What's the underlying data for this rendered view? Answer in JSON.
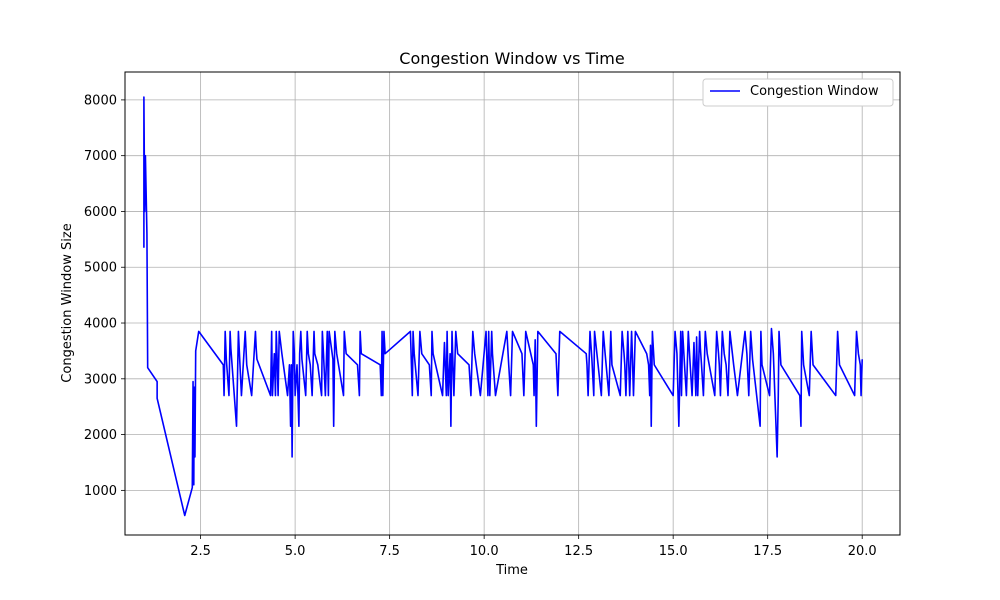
{
  "chart_data": {
    "type": "line",
    "title": "Congestion Window vs Time",
    "xlabel": "Time",
    "ylabel": "Congestion Window Size",
    "xlim": [
      0.5,
      21.0
    ],
    "ylim": [
      200,
      8500
    ],
    "xticks": [
      2.5,
      5.0,
      7.5,
      10.0,
      12.5,
      15.0,
      17.5,
      20.0
    ],
    "xtick_labels": [
      "2.5",
      "5.0",
      "7.5",
      "10.0",
      "12.5",
      "15.0",
      "17.5",
      "20.0"
    ],
    "yticks": [
      1000,
      2000,
      3000,
      4000,
      5000,
      6000,
      7000,
      8000
    ],
    "ytick_labels": [
      "1000",
      "2000",
      "3000",
      "4000",
      "5000",
      "6000",
      "7000",
      "8000"
    ],
    "grid": true,
    "legend_position": "top-right",
    "series": [
      {
        "name": "Congestion Window",
        "color": "#0000ff",
        "x": [
          1.0,
          1.0,
          1.02,
          1.04,
          1.08,
          1.1,
          1.35,
          1.35,
          2.08,
          2.28,
          2.3,
          2.32,
          2.33,
          2.35,
          2.37,
          2.45,
          3.1,
          3.12,
          3.15,
          3.18,
          3.25,
          3.28,
          3.3,
          3.45,
          3.5,
          3.52,
          3.58,
          3.68,
          3.7,
          3.72,
          3.85,
          3.95,
          3.97,
          3.99,
          4.35,
          4.38,
          4.4,
          4.45,
          4.48,
          4.5,
          4.52,
          4.55,
          4.58,
          4.65,
          4.8,
          4.85,
          4.88,
          4.9,
          4.92,
          4.95,
          4.98,
          5.0,
          5.05,
          5.1,
          5.12,
          5.15,
          5.18,
          5.28,
          5.32,
          5.35,
          5.4,
          5.45,
          5.5,
          5.52,
          5.6,
          5.7,
          5.72,
          5.75,
          5.8,
          5.85,
          5.88,
          5.9,
          6.0,
          6.02,
          6.05,
          6.1,
          6.28,
          6.3,
          6.35,
          6.65,
          6.7,
          6.72,
          6.75,
          7.25,
          7.28,
          7.3,
          7.32,
          7.35,
          7.38,
          8.05,
          8.1,
          8.12,
          8.15,
          8.25,
          8.3,
          8.35,
          8.55,
          8.6,
          8.62,
          8.65,
          8.9,
          8.95,
          9.0,
          9.02,
          9.05,
          9.1,
          9.12,
          9.15,
          9.2,
          9.25,
          9.3,
          9.6,
          9.65,
          9.7,
          9.75,
          9.9,
          10.05,
          10.1,
          10.12,
          10.15,
          10.2,
          10.22,
          10.3,
          10.6,
          10.65,
          10.7,
          10.75,
          11.0,
          11.05,
          11.1,
          11.3,
          11.32,
          11.35,
          11.38,
          11.42,
          11.9,
          11.95,
          12.0,
          12.7,
          12.72,
          12.75,
          12.8,
          12.85,
          12.9,
          12.92,
          13.1,
          13.15,
          13.2,
          13.3,
          13.35,
          13.38,
          13.6,
          13.65,
          13.7,
          13.72,
          13.75,
          13.8,
          13.85,
          13.9,
          13.92,
          13.95,
          14.0,
          14.3,
          14.35,
          14.38,
          14.4,
          14.42,
          14.45,
          14.5,
          15.0,
          15.05,
          15.1,
          15.15,
          15.2,
          15.22,
          15.25,
          15.3,
          15.35,
          15.4,
          15.45,
          15.5,
          15.55,
          15.6,
          15.62,
          15.65,
          15.7,
          15.72,
          15.75,
          15.8,
          15.85,
          15.9,
          16.1,
          16.15,
          16.2,
          16.22,
          16.25,
          16.3,
          16.35,
          16.4,
          16.45,
          16.5,
          16.6,
          16.7,
          16.9,
          16.95,
          17.0,
          17.05,
          17.1,
          17.3,
          17.32,
          17.35,
          17.55,
          17.6,
          17.65,
          17.75,
          17.78,
          17.8,
          17.85,
          18.35,
          18.38,
          18.4,
          18.45,
          18.6,
          18.65,
          18.7,
          19.3,
          19.35,
          19.4,
          19.8,
          19.85,
          19.9,
          19.95,
          19.97,
          20.0
        ],
        "y": [
          5350,
          8050,
          6000,
          7000,
          5600,
          3200,
          2950,
          2650,
          550,
          1050,
          2950,
          1100,
          2850,
          1600,
          3500,
          3850,
          3250,
          2700,
          3850,
          3350,
          2700,
          3850,
          3550,
          2150,
          3850,
          3550,
          2700,
          3850,
          3550,
          3250,
          2700,
          3850,
          3550,
          3350,
          2700,
          3850,
          2700,
          3450,
          2700,
          3850,
          3450,
          2700,
          3850,
          3450,
          2700,
          3250,
          2150,
          3250,
          1600,
          3850,
          3450,
          2700,
          3250,
          2150,
          3450,
          3850,
          3350,
          2700,
          3850,
          3450,
          3250,
          2700,
          3850,
          3450,
          3250,
          2700,
          3850,
          3450,
          2700,
          3850,
          2700,
          3850,
          3350,
          2150,
          3850,
          3450,
          2700,
          3850,
          3450,
          3250,
          2700,
          3850,
          3450,
          3250,
          2700,
          3850,
          2700,
          3850,
          3450,
          3850,
          2700,
          3850,
          3450,
          2700,
          3850,
          3450,
          3250,
          2700,
          3850,
          3450,
          2700,
          3650,
          2700,
          3850,
          2700,
          3450,
          2150,
          3850,
          2700,
          3850,
          3450,
          3250,
          2700,
          3850,
          3450,
          2700,
          3850,
          2700,
          3850,
          2700,
          3850,
          3450,
          2700,
          3850,
          3250,
          2700,
          3850,
          3450,
          2700,
          3850,
          3250,
          2700,
          3700,
          2150,
          3850,
          3450,
          2700,
          3850,
          3450,
          3250,
          2700,
          3850,
          3350,
          2700,
          3850,
          2700,
          3850,
          3450,
          2700,
          3850,
          3250,
          2700,
          3850,
          3450,
          3250,
          2700,
          3850,
          2700,
          3850,
          3450,
          2700,
          3850,
          3450,
          3250,
          2700,
          3600,
          2150,
          3850,
          3250,
          2700,
          3850,
          3450,
          2150,
          3850,
          2700,
          3850,
          3250,
          2700,
          3850,
          3250,
          2700,
          3650,
          2700,
          3750,
          2700,
          3850,
          3550,
          3250,
          2700,
          3850,
          3450,
          2700,
          3850,
          3450,
          3250,
          2700,
          3850,
          3450,
          3250,
          2700,
          3850,
          3250,
          2700,
          3850,
          3450,
          2700,
          3850,
          3350,
          2150,
          3850,
          3250,
          2700,
          3900,
          3450,
          1600,
          2700,
          3850,
          3250,
          2700,
          2150,
          3850,
          3250,
          2700,
          3850,
          3250,
          2700,
          3850,
          3250,
          2700,
          3850,
          3450,
          3250,
          2700,
          3350
        ]
      }
    ]
  }
}
